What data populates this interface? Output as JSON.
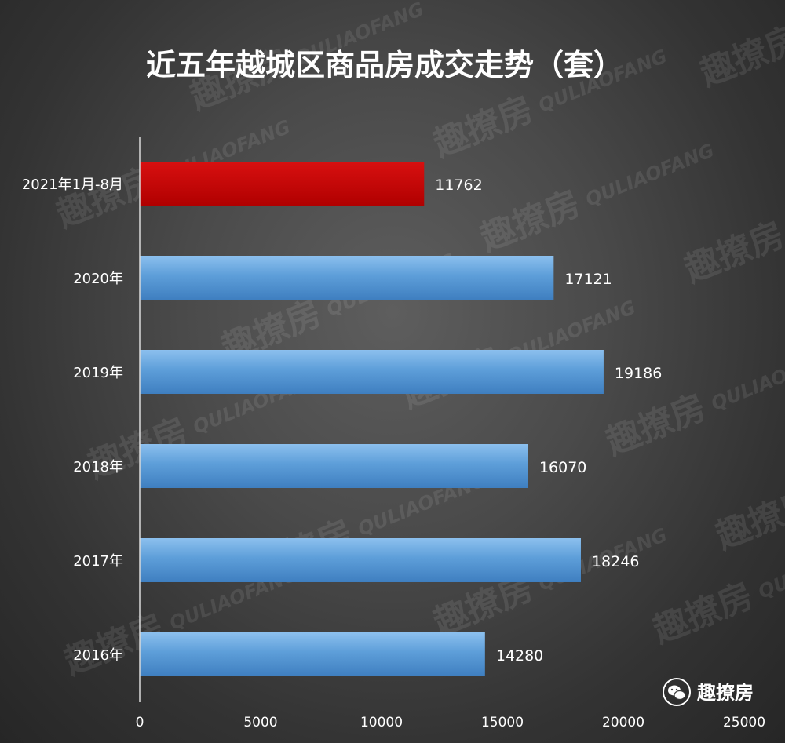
{
  "chart_data": {
    "type": "bar",
    "orientation": "horizontal",
    "title": "近五年越城区商品房成交走势（套）",
    "categories": [
      "2021年1月-8月",
      "2020年",
      "2019年",
      "2018年",
      "2017年",
      "2016年"
    ],
    "values": [
      11762,
      17121,
      19186,
      16070,
      18246,
      14280
    ],
    "highlight_index": 0,
    "xlim": [
      0,
      25000
    ],
    "xticks": [
      0,
      5000,
      10000,
      15000,
      20000,
      25000
    ],
    "xlabel": "",
    "ylabel": "",
    "grid": false,
    "legend": "none"
  },
  "colors": {
    "highlight": "#c00000",
    "bar": "#5b9bd5",
    "text": "#ffffff",
    "axis": "#d9d9d9"
  },
  "watermark": {
    "cn": "趣撩房",
    "en": "QULIAOFANG"
  },
  "brand": {
    "icon": "wechat-icon",
    "label": "趣撩房"
  }
}
